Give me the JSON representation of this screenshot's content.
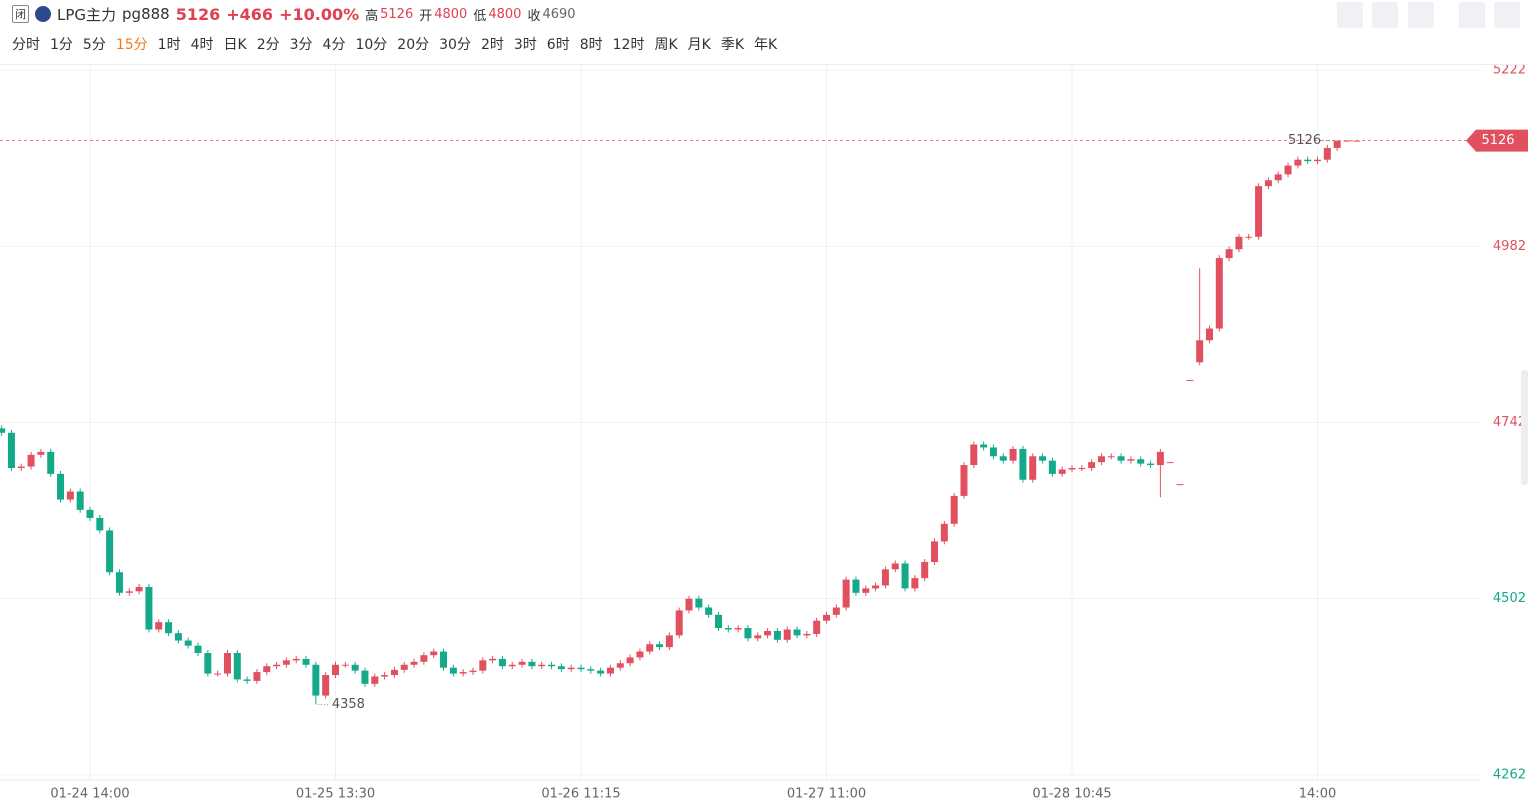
{
  "header": {
    "badge": "闭",
    "name": "LPG主力",
    "code": "pg888",
    "price": "5126",
    "change": "+466",
    "change_pct": "+10.00%",
    "stats": [
      {
        "label": "高",
        "value": "5126"
      },
      {
        "label": "开",
        "value": "4800"
      },
      {
        "label": "低",
        "value": "4800"
      },
      {
        "label": "收",
        "value": "4690"
      }
    ],
    "timeframes": [
      "分时",
      "1分",
      "5分",
      "15分",
      "1时",
      "4时",
      "日K",
      "2分",
      "3分",
      "4分",
      "10分",
      "20分",
      "30分",
      "2时",
      "3时",
      "6时",
      "8时",
      "12时",
      "周K",
      "月K",
      "季K",
      "年K"
    ],
    "active_timeframe": "15分"
  },
  "chart_data": {
    "type": "candlestick",
    "categories": [
      null,
      null,
      null,
      null,
      null,
      null,
      null,
      null,
      null,
      "01-24 14:00",
      null,
      null,
      null,
      null,
      null,
      null,
      null,
      null,
      null,
      null,
      null,
      null,
      null,
      null,
      null,
      null,
      null,
      null,
      null,
      null,
      null,
      null,
      null,
      null,
      "01-25 13:30",
      null,
      null,
      null,
      null,
      null,
      null,
      null,
      null,
      null,
      null,
      null,
      null,
      null,
      null,
      null,
      null,
      null,
      null,
      null,
      null,
      null,
      null,
      null,
      null,
      "01-26 11:15",
      null,
      null,
      null,
      null,
      null,
      null,
      null,
      null,
      null,
      null,
      null,
      null,
      null,
      null,
      null,
      null,
      null,
      null,
      null,
      null,
      null,
      null,
      null,
      null,
      "01-27 11:00",
      null,
      null,
      null,
      null,
      null,
      null,
      null,
      null,
      null,
      null,
      null,
      null,
      null,
      null,
      null,
      null,
      null,
      null,
      null,
      null,
      null,
      null,
      null,
      null,
      "01-28 10:45",
      null,
      null,
      null,
      null,
      null,
      null,
      null,
      null,
      null,
      null,
      null,
      null,
      null,
      null,
      null,
      null,
      null,
      null,
      null,
      null,
      null,
      null,
      null,
      null,
      "14:00",
      null,
      null,
      null,
      null
    ],
    "open": [
      4734,
      4728,
      4680,
      4682,
      4698,
      4702,
      4672,
      4637,
      4648,
      4623,
      4612,
      4595,
      4538,
      4510,
      4512,
      4518,
      4460,
      4470,
      4455,
      4445,
      4438,
      4428,
      4400,
      4400,
      4428,
      4392,
      4390,
      4402,
      4410,
      4412,
      4418,
      4420,
      4412,
      4370,
      4398,
      4412,
      4412,
      4404,
      4386,
      4396,
      4398,
      4405,
      4412,
      4416,
      4425,
      4430,
      4408,
      4400,
      4402,
      4404,
      4418,
      4420,
      4410,
      4412,
      4416,
      4410,
      4412,
      4410,
      4406,
      4408,
      4406,
      4404,
      4400,
      4408,
      4414,
      4422,
      4430,
      4440,
      4436,
      4452,
      4486,
      4502,
      4490,
      4480,
      4462,
      4460,
      4462,
      4448,
      4452,
      4458,
      4446,
      4460,
      4452,
      4454,
      4472,
      4480,
      4490,
      4528,
      4510,
      4516,
      4520,
      4542,
      4550,
      4516,
      4530,
      4552,
      4580,
      4604,
      4642,
      4684,
      4712,
      4708,
      4696,
      4690,
      4706,
      4664,
      4696,
      4690,
      4672,
      4678,
      4680,
      4680,
      4688,
      4696,
      4696,
      4690,
      4692,
      4686,
      4684,
      4688,
      4658,
      4800,
      4824,
      4854,
      4870,
      4966,
      4978,
      4995,
      4995,
      5064,
      5072,
      5080,
      5092,
      5100,
      5098,
      5100,
      5116,
      5126,
      5126
    ],
    "high": [
      4738,
      4732,
      4686,
      4702,
      4706,
      4706,
      4676,
      4652,
      4652,
      4627,
      4616,
      4599,
      4542,
      4516,
      4522,
      4522,
      4474,
      4474,
      4459,
      4449,
      4442,
      4432,
      4404,
      4432,
      4432,
      4396,
      4406,
      4414,
      4416,
      4422,
      4424,
      4424,
      4416,
      4402,
      4416,
      4416,
      4416,
      4408,
      4400,
      4402,
      4409,
      4416,
      4420,
      4429,
      4434,
      4434,
      4412,
      4406,
      4408,
      4422,
      4424,
      4424,
      4416,
      4420,
      4420,
      4416,
      4416,
      4414,
      4412,
      4412,
      4410,
      4408,
      4412,
      4418,
      4426,
      4434,
      4444,
      4444,
      4456,
      4490,
      4506,
      4506,
      4494,
      4484,
      4466,
      4466,
      4466,
      4456,
      4462,
      4462,
      4464,
      4464,
      4458,
      4476,
      4484,
      4494,
      4532,
      4532,
      4520,
      4524,
      4546,
      4554,
      4554,
      4534,
      4556,
      4584,
      4608,
      4646,
      4688,
      4716,
      4716,
      4712,
      4700,
      4710,
      4710,
      4700,
      4700,
      4694,
      4682,
      4684,
      4684,
      4692,
      4700,
      4700,
      4700,
      4696,
      4696,
      4690,
      4706,
      4688,
      4658,
      4800,
      4952,
      4874,
      4970,
      4982,
      4999,
      4999,
      5068,
      5076,
      5084,
      5096,
      5104,
      5104,
      5104,
      5120,
      5126,
      5126,
      5126
    ],
    "low": [
      4724,
      4676,
      4676,
      4678,
      4694,
      4668,
      4633,
      4633,
      4619,
      4608,
      4591,
      4534,
      4506,
      4506,
      4508,
      4456,
      4456,
      4451,
      4441,
      4434,
      4424,
      4396,
      4396,
      4396,
      4388,
      4386,
      4386,
      4398,
      4406,
      4408,
      4414,
      4408,
      4358,
      4366,
      4394,
      4408,
      4400,
      4382,
      4382,
      4392,
      4394,
      4401,
      4408,
      4412,
      4421,
      4404,
      4396,
      4396,
      4398,
      4400,
      4414,
      4406,
      4406,
      4408,
      4406,
      4406,
      4406,
      4402,
      4402,
      4402,
      4400,
      4396,
      4396,
      4404,
      4410,
      4418,
      4426,
      4432,
      4432,
      4448,
      4482,
      4486,
      4476,
      4458,
      4456,
      4456,
      4444,
      4444,
      4448,
      4442,
      4442,
      4448,
      4448,
      4450,
      4468,
      4476,
      4486,
      4506,
      4506,
      4512,
      4516,
      4538,
      4512,
      4512,
      4526,
      4548,
      4576,
      4600,
      4638,
      4680,
      4704,
      4692,
      4686,
      4686,
      4660,
      4660,
      4686,
      4668,
      4668,
      4674,
      4676,
      4676,
      4684,
      4692,
      4686,
      4686,
      4682,
      4680,
      4640,
      4688,
      4658,
      4800,
      4820,
      4850,
      4866,
      4962,
      4974,
      4991,
      4991,
      5060,
      5068,
      5076,
      5088,
      5094,
      5094,
      5096,
      5112,
      5126,
      5126
    ],
    "close": [
      4728,
      4680,
      4682,
      4698,
      4702,
      4672,
      4637,
      4648,
      4623,
      4612,
      4595,
      4538,
      4510,
      4512,
      4518,
      4460,
      4470,
      4455,
      4445,
      4438,
      4428,
      4400,
      4400,
      4428,
      4392,
      4390,
      4402,
      4410,
      4412,
      4418,
      4420,
      4412,
      4370,
      4398,
      4412,
      4412,
      4404,
      4386,
      4396,
      4398,
      4405,
      4412,
      4416,
      4425,
      4430,
      4408,
      4400,
      4402,
      4404,
      4418,
      4420,
      4410,
      4412,
      4416,
      4410,
      4412,
      4410,
      4406,
      4408,
      4406,
      4404,
      4400,
      4408,
      4414,
      4422,
      4430,
      4440,
      4436,
      4452,
      4486,
      4502,
      4490,
      4480,
      4462,
      4460,
      4462,
      4448,
      4452,
      4458,
      4446,
      4460,
      4452,
      4454,
      4472,
      4480,
      4490,
      4528,
      4510,
      4516,
      4520,
      4542,
      4550,
      4516,
      4530,
      4552,
      4580,
      4604,
      4642,
      4684,
      4712,
      4708,
      4696,
      4690,
      4706,
      4664,
      4696,
      4690,
      4672,
      4678,
      4680,
      4680,
      4688,
      4696,
      4696,
      4690,
      4692,
      4686,
      4684,
      4702,
      4688,
      4658,
      4800,
      4854,
      4870,
      4966,
      4978,
      4995,
      4995,
      5064,
      5072,
      5080,
      5092,
      5100,
      5098,
      5100,
      5116,
      5126,
      5126,
      5126
    ],
    "ylim": [
      4255,
      5229
    ],
    "yticks": [
      5222,
      4982,
      4742,
      4502,
      4262
    ],
    "up_color": "#e0505e",
    "down_color": "#14a98b",
    "grid": true,
    "last_price": 5126,
    "max_label": 5126,
    "min_label": 4358
  }
}
